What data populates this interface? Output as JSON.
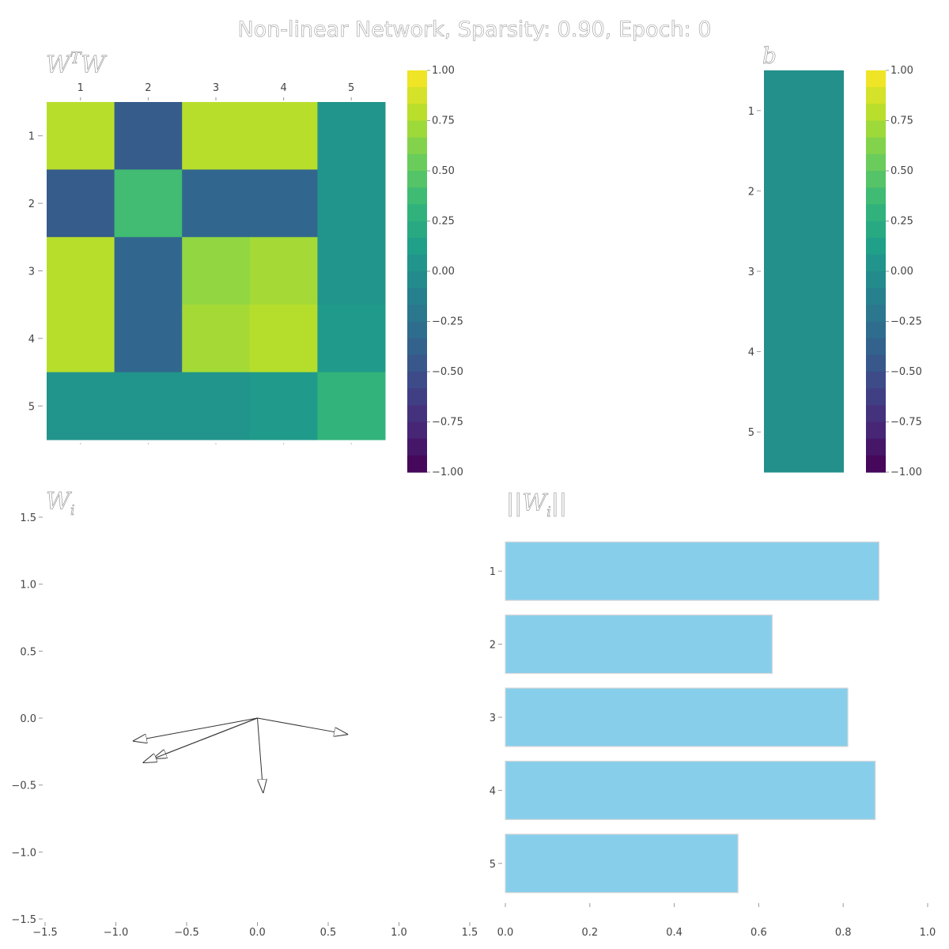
{
  "figure": {
    "title": "Non-linear Network, Sparsity: 0.90, Epoch: 0"
  },
  "chart_data": [
    {
      "type": "heatmap",
      "panel_title": "W^T W",
      "row_labels": [
        "1",
        "2",
        "3",
        "4",
        "5"
      ],
      "col_labels": [
        "1",
        "2",
        "3",
        "4",
        "5"
      ],
      "values": [
        [
          0.79,
          -0.42,
          0.79,
          0.79,
          0.04
        ],
        [
          -0.42,
          0.38,
          -0.34,
          -0.34,
          0.04
        ],
        [
          0.79,
          -0.34,
          0.67,
          0.73,
          0.04
        ],
        [
          0.79,
          -0.34,
          0.73,
          0.78,
          0.08
        ],
        [
          0.04,
          0.04,
          0.04,
          0.08,
          0.3
        ]
      ],
      "colorbar": {
        "range": [
          -1.0,
          1.0
        ],
        "ticks": [
          "1.00",
          "0.75",
          "0.50",
          "0.25",
          "0.00",
          "−0.25",
          "−0.50",
          "−0.75",
          "−1.00"
        ]
      }
    },
    {
      "type": "heatmap",
      "panel_title": "b",
      "row_labels": [
        "1",
        "2",
        "3",
        "4",
        "5"
      ],
      "values": [
        0.0,
        0.0,
        0.0,
        0.0,
        0.0
      ],
      "colorbar": {
        "range": [
          -1.0,
          1.0
        ],
        "ticks": [
          "1.00",
          "0.75",
          "0.50",
          "0.25",
          "0.00",
          "−0.25",
          "−0.50",
          "−0.75",
          "−1.00"
        ]
      }
    },
    {
      "type": "scatter",
      "panel_title": "W_i",
      "xlim": [
        -1.5,
        1.5
      ],
      "ylim": [
        -1.5,
        1.5
      ],
      "x_ticks": [
        "−1.5",
        "−1.0",
        "−0.5",
        "0.0",
        "0.5",
        "1.0",
        "1.5"
      ],
      "y_ticks": [
        "1.5",
        "1.0",
        "0.5",
        "0.0",
        "−0.5",
        "−1.0",
        "−1.5"
      ],
      "vectors": [
        {
          "x": -0.87,
          "y": -0.17
        },
        {
          "x": 0.63,
          "y": -0.12
        },
        {
          "x": -0.73,
          "y": -0.3
        },
        {
          "x": -0.8,
          "y": -0.33
        },
        {
          "x": 0.04,
          "y": -0.55
        }
      ]
    },
    {
      "type": "bar",
      "orientation": "horizontal",
      "panel_title": "||W_i||",
      "categories": [
        "1",
        "2",
        "3",
        "4",
        "5"
      ],
      "values": [
        0.885,
        0.632,
        0.811,
        0.876,
        0.551
      ],
      "xlim": [
        0.0,
        1.0
      ],
      "x_ticks": [
        "0.0",
        "0.2",
        "0.4",
        "0.6",
        "0.8",
        "1.0"
      ],
      "bar_color": "#87ceeb"
    }
  ]
}
